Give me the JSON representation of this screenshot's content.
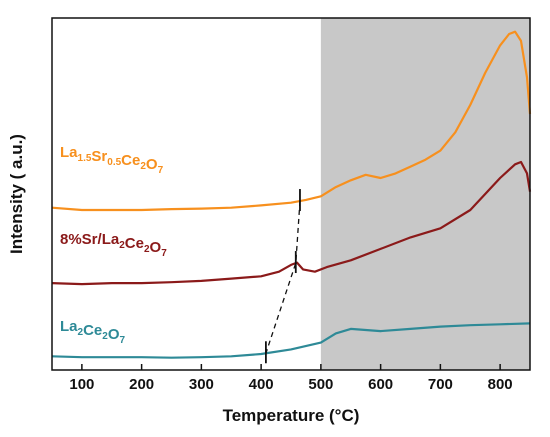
{
  "chart_data": {
    "type": "line",
    "title": "",
    "xlabel": "Temperature (°C)",
    "ylabel": "Intensity ( a.u.)",
    "xlim": [
      50,
      850
    ],
    "xticks": [
      100,
      200,
      300,
      400,
      500,
      600,
      700,
      800
    ],
    "grid": false,
    "legend": "inline labels",
    "shaded_region": {
      "x_from": 500,
      "x_to": 850,
      "color": "#c8c8c8"
    },
    "series": [
      {
        "name": "La1.5Sr0.5Ce2O7",
        "label_parts": [
          {
            "text": "La",
            "sub": false
          },
          {
            "text": "1.5",
            "sub": true
          },
          {
            "text": "Sr",
            "sub": false
          },
          {
            "text": "0.5",
            "sub": true
          },
          {
            "text": "Ce",
            "sub": false
          },
          {
            "text": "2",
            "sub": true
          },
          {
            "text": "O",
            "sub": false
          },
          {
            "text": "7",
            "sub": true
          }
        ],
        "color": "#f7901e",
        "x": [
          50,
          100,
          150,
          200,
          250,
          300,
          350,
          400,
          450,
          475,
          500,
          525,
          550,
          575,
          600,
          625,
          650,
          675,
          700,
          725,
          750,
          775,
          800,
          815,
          825,
          835,
          845,
          850
        ],
        "y": [
          3.55,
          3.5,
          3.5,
          3.5,
          3.52,
          3.53,
          3.55,
          3.6,
          3.66,
          3.72,
          3.8,
          4.0,
          4.15,
          4.27,
          4.2,
          4.3,
          4.45,
          4.6,
          4.8,
          5.2,
          5.8,
          6.5,
          7.1,
          7.35,
          7.4,
          7.2,
          6.4,
          5.6
        ],
        "marker_x": 465
      },
      {
        "name": "8%Sr/La2Ce2O7",
        "label_parts": [
          {
            "text": "8%Sr/La",
            "sub": false
          },
          {
            "text": "2",
            "sub": true
          },
          {
            "text": "Ce",
            "sub": false
          },
          {
            "text": "2",
            "sub": true
          },
          {
            "text": "O",
            "sub": false
          },
          {
            "text": "7",
            "sub": true
          }
        ],
        "color": "#8b1a1a",
        "x": [
          50,
          100,
          150,
          200,
          250,
          300,
          350,
          400,
          430,
          450,
          460,
          470,
          490,
          510,
          550,
          600,
          650,
          700,
          750,
          800,
          825,
          835,
          845,
          850
        ],
        "y": [
          1.9,
          1.88,
          1.9,
          1.9,
          1.92,
          1.95,
          2.0,
          2.05,
          2.15,
          2.3,
          2.35,
          2.2,
          2.15,
          2.25,
          2.4,
          2.65,
          2.9,
          3.1,
          3.5,
          4.2,
          4.5,
          4.55,
          4.3,
          3.9
        ],
        "marker_x": 458
      },
      {
        "name": "La2Ce2O7",
        "label_parts": [
          {
            "text": "La",
            "sub": false
          },
          {
            "text": "2",
            "sub": true
          },
          {
            "text": "Ce",
            "sub": false
          },
          {
            "text": "2",
            "sub": true
          },
          {
            "text": "O",
            "sub": false
          },
          {
            "text": "7",
            "sub": true
          }
        ],
        "color": "#2e8a97",
        "x": [
          50,
          100,
          150,
          200,
          250,
          300,
          350,
          400,
          450,
          500,
          525,
          550,
          600,
          650,
          700,
          750,
          800,
          850
        ],
        "y": [
          0.3,
          0.28,
          0.28,
          0.28,
          0.27,
          0.28,
          0.3,
          0.35,
          0.45,
          0.6,
          0.8,
          0.9,
          0.85,
          0.9,
          0.95,
          0.98,
          1.0,
          1.02
        ],
        "marker_x": 408
      }
    ]
  }
}
